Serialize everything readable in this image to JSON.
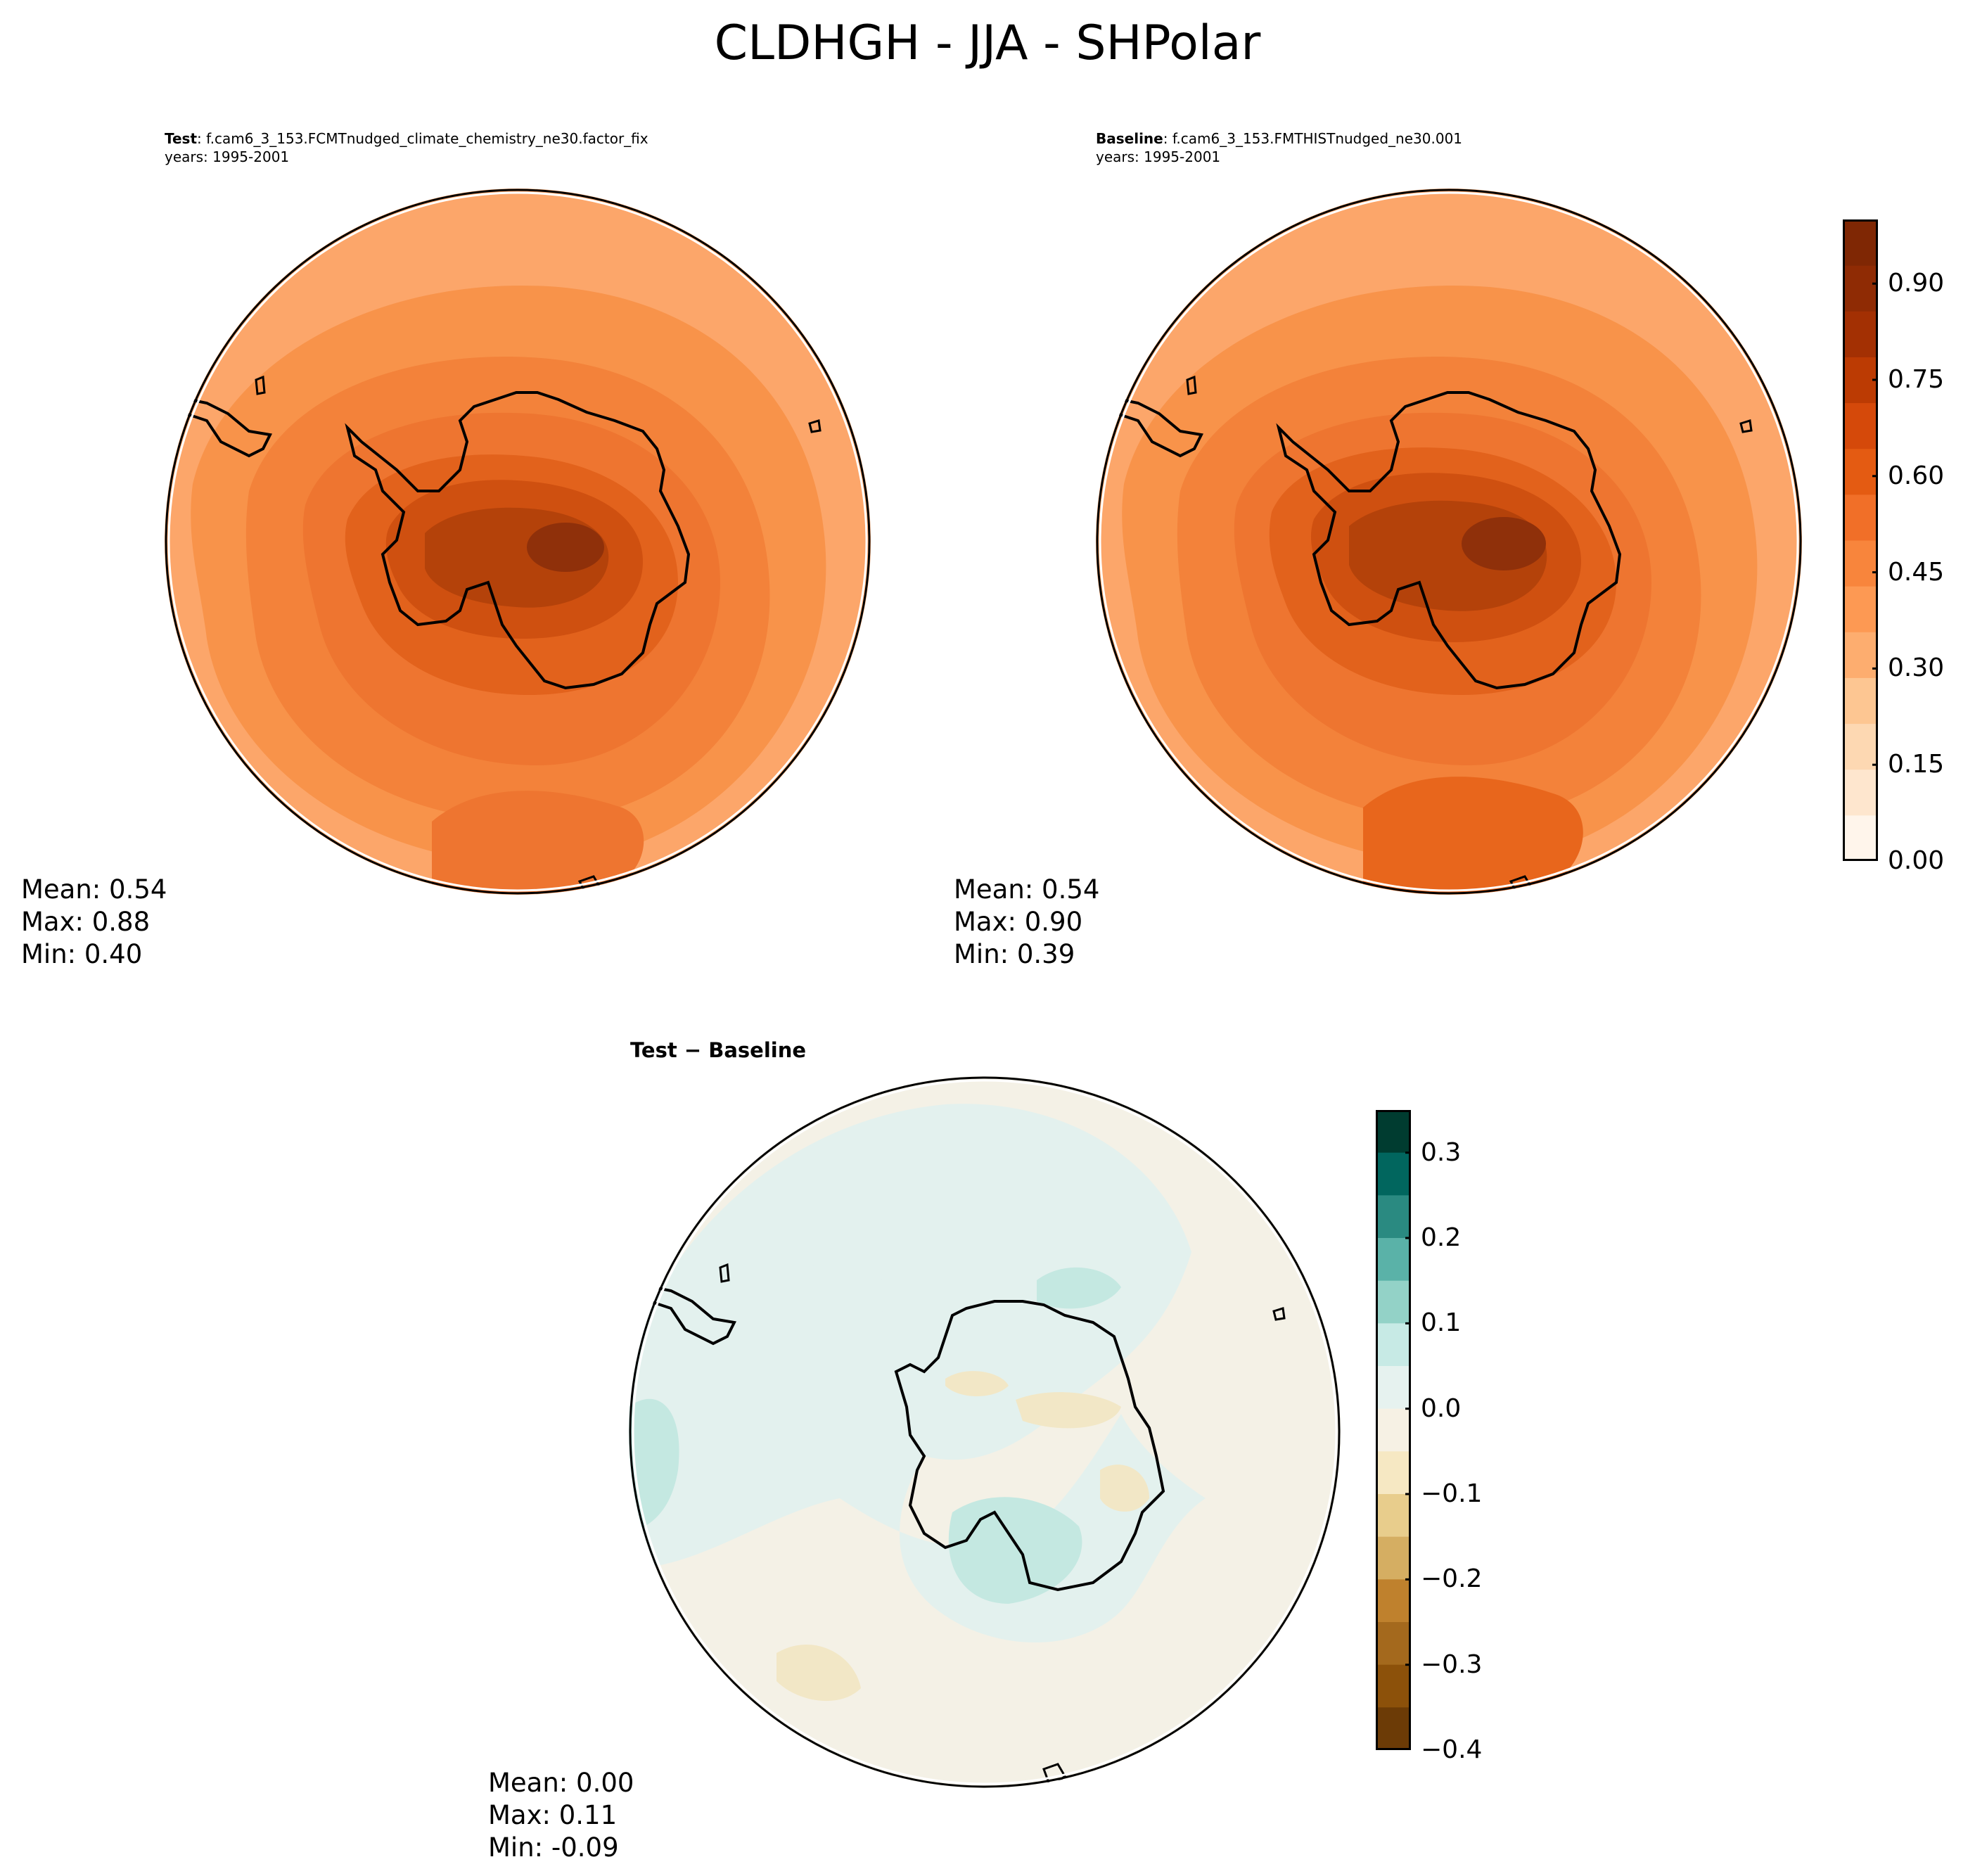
{
  "figure": {
    "title": "CLDHGH - JJA - SHPolar"
  },
  "panels": {
    "test": {
      "label": "Test",
      "case": ": f.cam6_3_153.FCMTnudged_climate_chemistry_ne30.factor_fix",
      "years": "years: 1995-2001",
      "mean": "Mean:  0.54",
      "max": "Max:  0.88",
      "min": "Min:  0.40"
    },
    "baseline": {
      "label": "Baseline",
      "case": ": f.cam6_3_153.FMTHISTnudged_ne30.001",
      "years": "years: 1995-2001",
      "mean": "Mean:  0.54",
      "max": "Max:  0.90",
      "min": "Min:  0.39"
    },
    "difference": {
      "label_a": "Test",
      "label_sep": " − ",
      "label_b": "Baseline",
      "mean": "Mean:  0.00",
      "max": "Max:  0.11",
      "min": "Min: -0.09"
    }
  },
  "colorbars": {
    "main": {
      "colormap": "Oranges",
      "range": [
        0,
        1
      ],
      "tick_labels": [
        "0.00",
        "0.15",
        "0.30",
        "0.45",
        "0.60",
        "0.75",
        "0.90"
      ],
      "colors": [
        "#fff5eb",
        "#fee6ce",
        "#fdd8b2",
        "#fdc692",
        "#fdad6f",
        "#fd9953",
        "#f8853c",
        "#f16f28",
        "#e45b12",
        "#d5490a",
        "#bc3b03",
        "#a33003",
        "#8f2b04",
        "#7f2704"
      ]
    },
    "diff": {
      "colormap": "BrBG",
      "range": [
        -0.4,
        0.35
      ],
      "tick_labels": [
        "0.3",
        "0.2",
        "0.1",
        "0.0",
        "−0.1",
        "−0.2",
        "−0.3",
        "−0.4"
      ],
      "colors": [
        "#003c30",
        "#01665e",
        "#2a8a81",
        "#5ab2a8",
        "#93d2c7",
        "#c7eae5",
        "#e6f2ef",
        "#f6f1e4",
        "#f6e8c3",
        "#e8cd8c",
        "#d5ae62",
        "#bf812d",
        "#a4691d",
        "#8c510a",
        "#6c3b06"
      ]
    }
  },
  "map_colors": {
    "land_coast": "#000000",
    "test_outer": "#fca66a",
    "test_mid": "#f68a3f",
    "test_inner": "#e8661c",
    "test_core": "#b4420a",
    "test_peak": "#8f300a",
    "diff_base": "#f4f1e6",
    "diff_pos": "#e3f1ee",
    "diff_pos2": "#c4e8e1",
    "diff_neg": "#f2e7c6"
  }
}
